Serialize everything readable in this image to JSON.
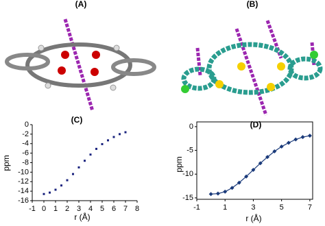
{
  "figure_labels": {
    "a": "(A)",
    "b": "(B)"
  },
  "chart_data": [
    {
      "type": "scatter",
      "title": "(C)",
      "x_label": "r (Å)",
      "y_label": "ppm",
      "color": "#1a237e",
      "x": [
        0,
        0.5,
        1,
        1.5,
        2,
        2.5,
        3,
        3.5,
        4,
        4.5,
        5,
        5.5,
        6,
        6.5,
        7
      ],
      "values": [
        -14.6,
        -14.3,
        -13.7,
        -12.8,
        -11.7,
        -10.4,
        -9,
        -7.6,
        -6.3,
        -5.1,
        -4.1,
        -3.3,
        -2.6,
        -2,
        -1.6
      ],
      "xlim": [
        -1,
        8
      ],
      "xticks": [
        -1,
        0,
        1,
        2,
        3,
        4,
        5,
        6,
        7,
        8
      ],
      "ylim": [
        -16,
        0
      ],
      "yticks": [
        -16,
        -14,
        -12,
        -10,
        -8,
        -6,
        -4,
        -2,
        0
      ]
    },
    {
      "type": "line",
      "title": "(D)",
      "x_label": "r (Å)",
      "y_label": "ppm",
      "color": "#1a3a7a",
      "x": [
        0,
        0.5,
        1,
        1.5,
        2,
        2.5,
        3,
        3.5,
        4,
        4.5,
        5,
        5.5,
        6,
        6.5,
        7
      ],
      "values": [
        -14.2,
        -14.1,
        -13.7,
        -12.9,
        -11.8,
        -10.5,
        -9.1,
        -7.7,
        -6.4,
        -5.2,
        -4.2,
        -3.4,
        -2.7,
        -2.2,
        -1.9
      ],
      "xlim": [
        -1,
        7.2
      ],
      "xticks": [
        -1,
        1,
        3,
        5,
        7
      ],
      "ylim": [
        -15.3,
        1
      ],
      "yticks": [
        -15,
        -10,
        -5,
        0
      ]
    }
  ]
}
